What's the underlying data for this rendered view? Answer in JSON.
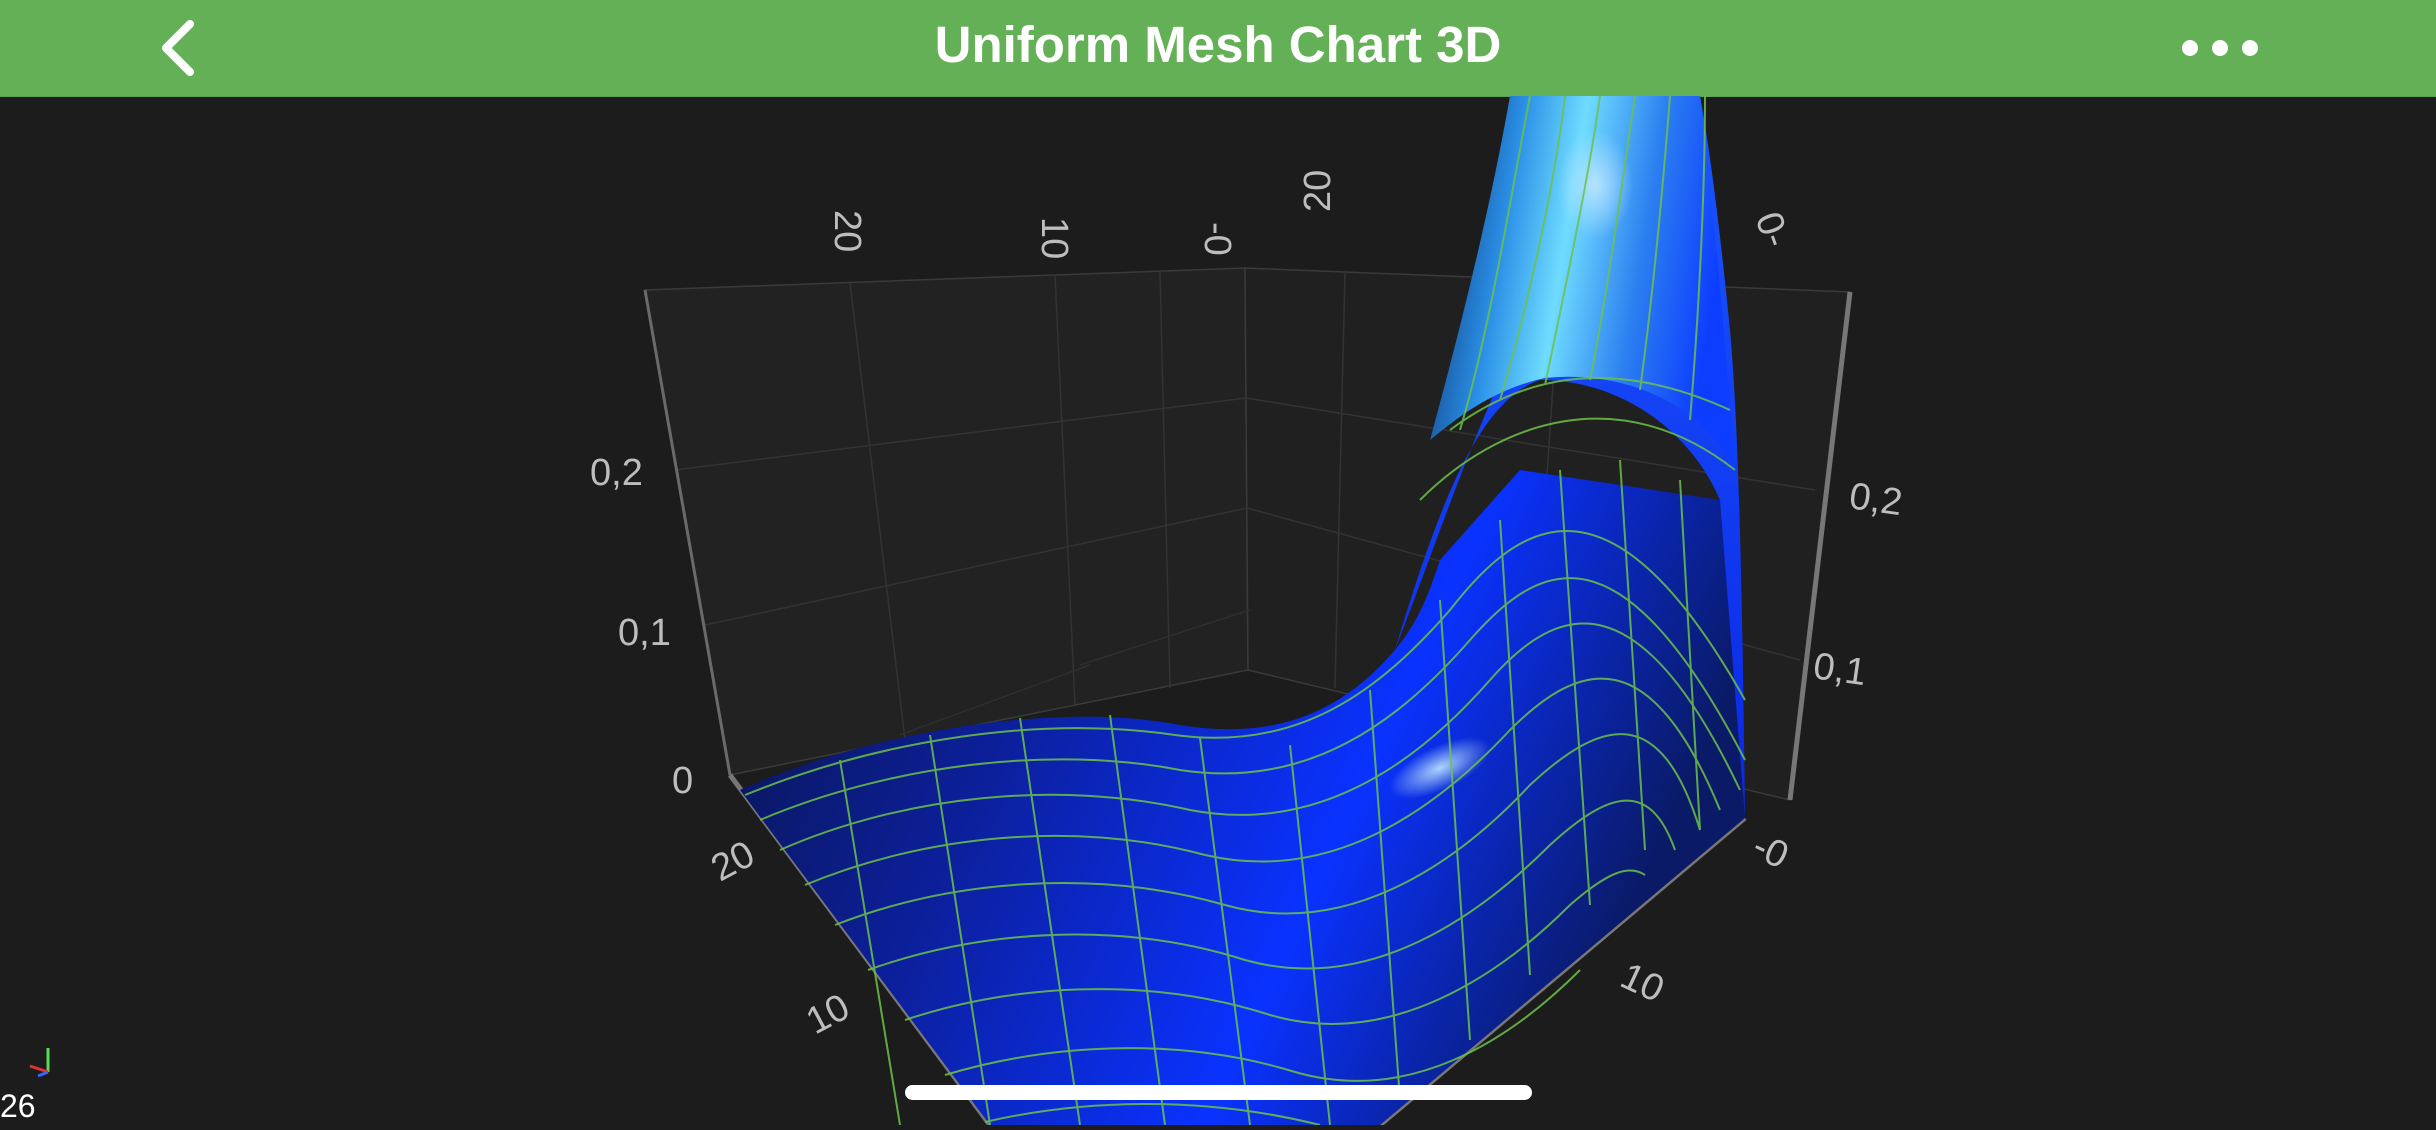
{
  "nav": {
    "title": "Uniform Mesh Chart 3D",
    "back_icon": "chevron-left-icon",
    "more_icon": "ellipsis-icon",
    "background_color": "#63b056"
  },
  "chart_data": {
    "type": "surface",
    "title": "",
    "x_axis_ticks": [
      "20",
      "10",
      "-0"
    ],
    "z_axis_ticks_back": [
      "20",
      "10",
      "-0"
    ],
    "z_axis_ticks_front": [
      "20",
      "10"
    ],
    "x_axis_ticks_front": [
      "-0",
      "10"
    ],
    "y_axis_ticks_left": [
      "0",
      "0,1",
      "0,2"
    ],
    "y_axis_ticks_right": [
      "0,1",
      "0,2"
    ],
    "back_right_tick": "0-",
    "colors": {
      "background": "#1c1c1c",
      "mesh_low": "#0a0f3a",
      "mesh_mid": "#0b2cff",
      "mesh_high": "#5fd2ff",
      "wireframe": "#6cc24a"
    }
  },
  "status": {
    "fps": "26"
  }
}
